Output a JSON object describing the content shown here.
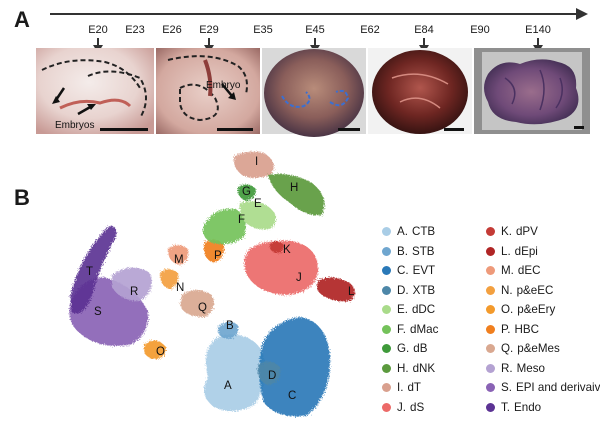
{
  "panels": {
    "a": "A",
    "b": "B"
  },
  "timeline": {
    "ticks": [
      {
        "label": "E20",
        "arrow": true
      },
      {
        "label": "E23",
        "arrow": false
      },
      {
        "label": "E26",
        "arrow": false
      },
      {
        "label": "E29",
        "arrow": true
      },
      {
        "label": "E35",
        "arrow": false
      },
      {
        "label": "E45",
        "arrow": true
      },
      {
        "label": "E62",
        "arrow": false
      },
      {
        "label": "E84",
        "arrow": true
      },
      {
        "label": "E90",
        "arrow": false
      },
      {
        "label": "E140",
        "arrow": true
      }
    ]
  },
  "photos": {
    "e20_caption": "Embryos",
    "e29_caption": "Embryo"
  },
  "clusters": [
    {
      "code": "A",
      "name": "CTB",
      "color": "#a9cde6"
    },
    {
      "code": "B",
      "name": "STB",
      "color": "#6fa6cf"
    },
    {
      "code": "C",
      "name": "EVT",
      "color": "#2a79b8"
    },
    {
      "code": "D",
      "name": "XTB",
      "color": "#4d87a8"
    },
    {
      "code": "E",
      "name": "dDC",
      "color": "#a9db8a"
    },
    {
      "code": "F",
      "name": "dMac",
      "color": "#74c25a"
    },
    {
      "code": "G",
      "name": "dB",
      "color": "#3f9a3a"
    },
    {
      "code": "H",
      "name": "dNK",
      "color": "#5b9a3e"
    },
    {
      "code": "I",
      "name": "dT",
      "color": "#d9a08e"
    },
    {
      "code": "J",
      "name": "dS",
      "color": "#ec6a68"
    },
    {
      "code": "K",
      "name": "dPV",
      "color": "#c43b36"
    },
    {
      "code": "L",
      "name": "dEpi",
      "color": "#b02525"
    },
    {
      "code": "M",
      "name": "dEC",
      "color": "#ee9a7a"
    },
    {
      "code": "N",
      "name": "p&eEC",
      "color": "#f3a03f"
    },
    {
      "code": "O",
      "name": "p&eEry",
      "color": "#f39a2c"
    },
    {
      "code": "P",
      "name": "HBC",
      "color": "#f07f1e"
    },
    {
      "code": "Q",
      "name": "p&eMes",
      "color": "#d9a890"
    },
    {
      "code": "R",
      "name": "Meso",
      "color": "#b4a2d2"
    },
    {
      "code": "S",
      "name": "EPI and derivaives",
      "color": "#8a63b5"
    },
    {
      "code": "T",
      "name": "Endo",
      "color": "#5c3394"
    }
  ]
}
